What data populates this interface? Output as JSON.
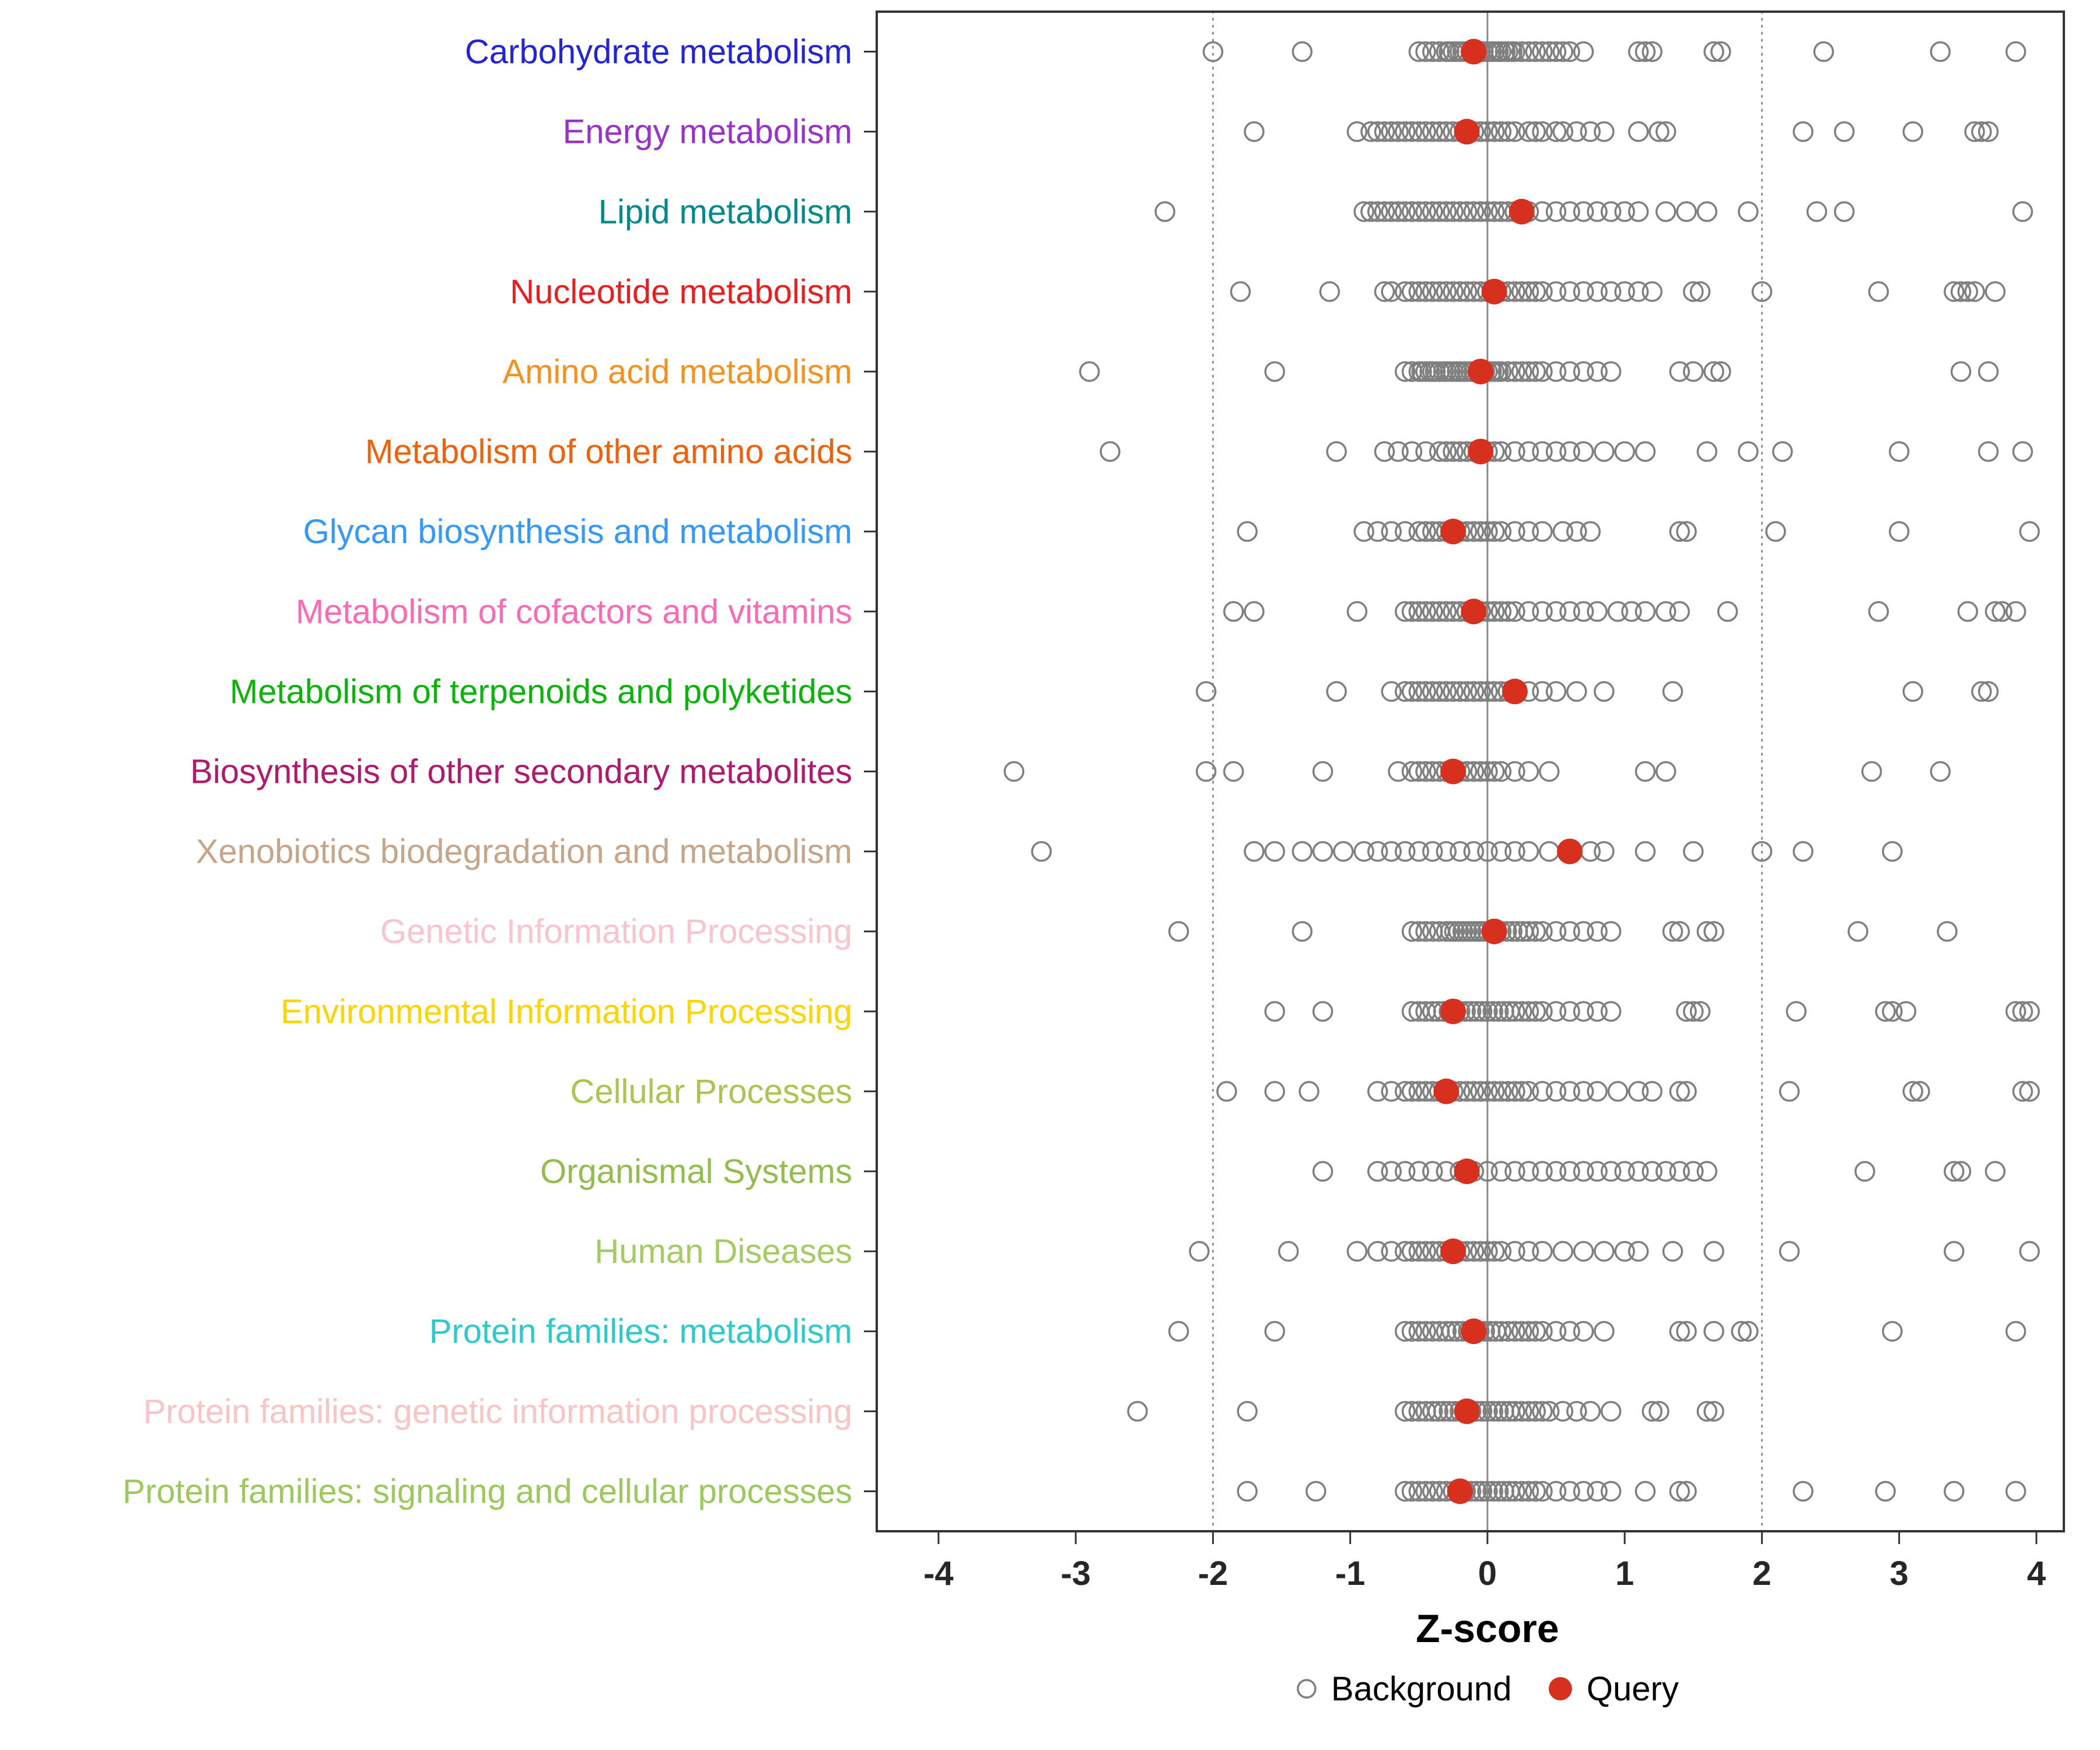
{
  "figure": {
    "background": "#FFFFFF"
  },
  "chart_data": {
    "type": "scatter",
    "variant": "horizontal-strip-dot-plot",
    "title": "",
    "xlabel": "Z-score",
    "ylabel": "",
    "xlim": [
      -4.45,
      4.2
    ],
    "xticks": [
      -4,
      -3,
      -2,
      -1,
      0,
      1,
      2,
      3,
      4
    ],
    "grid": false,
    "reference_lines": {
      "solid": [
        0
      ],
      "dotted": [
        -2,
        2
      ]
    },
    "background_point_color": "#7F7F7F",
    "query_point_color": "#D7301F",
    "panel_border_color": "#333333",
    "legend_position": "bottom",
    "legend": [
      {
        "label": "Background",
        "marker": "open-circle",
        "color": "#7F7F7F"
      },
      {
        "label": "Query",
        "marker": "filled-circle",
        "color": "#D7301F"
      }
    ],
    "categories": [
      {
        "label": "Carbohydrate metabolism",
        "color": "#2323DC",
        "query": -0.1,
        "background": [
          -2.0,
          -1.35,
          -0.5,
          -0.45,
          -0.4,
          -0.35,
          -0.3,
          -0.28,
          -0.25,
          -0.22,
          -0.2,
          -0.18,
          -0.15,
          -0.12,
          -0.1,
          -0.08,
          -0.05,
          -0.03,
          0.0,
          0.03,
          0.05,
          0.08,
          0.1,
          0.13,
          0.15,
          0.18,
          0.2,
          0.25,
          0.3,
          0.35,
          0.4,
          0.45,
          0.5,
          0.55,
          0.6,
          0.7,
          1.1,
          1.15,
          1.2,
          1.65,
          1.7,
          2.45,
          3.3,
          3.85
        ]
      },
      {
        "label": "Energy metabolism",
        "color": "#9932CC",
        "query": -0.15,
        "background": [
          -1.7,
          -0.95,
          -0.85,
          -0.8,
          -0.75,
          -0.7,
          -0.65,
          -0.6,
          -0.55,
          -0.5,
          -0.45,
          -0.4,
          -0.35,
          -0.3,
          -0.25,
          -0.2,
          -0.15,
          -0.1,
          -0.05,
          0.0,
          0.05,
          0.1,
          0.15,
          0.2,
          0.3,
          0.35,
          0.4,
          0.5,
          0.55,
          0.65,
          0.75,
          0.85,
          1.1,
          1.25,
          1.3,
          2.3,
          2.6,
          3.1,
          3.55,
          3.6,
          3.65
        ]
      },
      {
        "label": "Lipid metabolism",
        "color": "#008B8B",
        "query": 0.25,
        "background": [
          -2.35,
          -0.9,
          -0.85,
          -0.8,
          -0.75,
          -0.7,
          -0.65,
          -0.6,
          -0.55,
          -0.5,
          -0.45,
          -0.4,
          -0.35,
          -0.3,
          -0.25,
          -0.2,
          -0.15,
          -0.1,
          -0.05,
          0.0,
          0.05,
          0.1,
          0.15,
          0.2,
          0.3,
          0.4,
          0.5,
          0.6,
          0.7,
          0.8,
          0.9,
          1.0,
          1.1,
          1.3,
          1.45,
          1.6,
          1.9,
          2.4,
          2.6,
          3.9
        ]
      },
      {
        "label": "Nucleotide metabolism",
        "color": "#EE1C1C",
        "query": 0.05,
        "background": [
          -1.8,
          -1.15,
          -0.75,
          -0.7,
          -0.6,
          -0.55,
          -0.5,
          -0.45,
          -0.4,
          -0.35,
          -0.3,
          -0.25,
          -0.2,
          -0.15,
          -0.1,
          -0.05,
          0.0,
          0.05,
          0.1,
          0.15,
          0.2,
          0.25,
          0.3,
          0.35,
          0.4,
          0.5,
          0.6,
          0.7,
          0.8,
          0.9,
          1.0,
          1.1,
          1.2,
          1.5,
          1.55,
          2.0,
          2.85,
          3.4,
          3.45,
          3.5,
          3.55,
          3.7
        ]
      },
      {
        "label": "Amino acid metabolism",
        "color": "#F5921E",
        "query": -0.05,
        "background": [
          -2.9,
          -1.55,
          -0.6,
          -0.55,
          -0.5,
          -0.48,
          -0.45,
          -0.42,
          -0.4,
          -0.38,
          -0.35,
          -0.32,
          -0.3,
          -0.27,
          -0.25,
          -0.22,
          -0.2,
          -0.17,
          -0.15,
          -0.12,
          -0.1,
          -0.07,
          -0.05,
          -0.02,
          0.0,
          0.03,
          0.05,
          0.08,
          0.1,
          0.15,
          0.2,
          0.25,
          0.3,
          0.35,
          0.4,
          0.5,
          0.6,
          0.7,
          0.8,
          0.9,
          1.4,
          1.5,
          1.65,
          1.7,
          3.45,
          3.65
        ]
      },
      {
        "label": "Metabolism of other amino acids",
        "color": "#F2600A",
        "query": -0.05,
        "background": [
          -2.75,
          -1.1,
          -0.75,
          -0.65,
          -0.55,
          -0.45,
          -0.35,
          -0.3,
          -0.25,
          -0.2,
          -0.15,
          -0.1,
          -0.05,
          0.0,
          0.05,
          0.1,
          0.2,
          0.3,
          0.4,
          0.5,
          0.6,
          0.7,
          0.85,
          1.0,
          1.15,
          1.6,
          1.9,
          2.15,
          3.0,
          3.65,
          3.9
        ]
      },
      {
        "label": "Glycan biosynthesis and metabolism",
        "color": "#3399FF",
        "query": -0.25,
        "background": [
          -1.75,
          -0.9,
          -0.8,
          -0.7,
          -0.6,
          -0.5,
          -0.45,
          -0.4,
          -0.35,
          -0.3,
          -0.25,
          -0.2,
          -0.15,
          -0.1,
          -0.05,
          0.0,
          0.05,
          0.1,
          0.2,
          0.3,
          0.4,
          0.55,
          0.65,
          0.75,
          1.4,
          1.45,
          2.1,
          3.0,
          3.95
        ]
      },
      {
        "label": "Metabolism of cofactors and vitamins",
        "color": "#FF69B4",
        "query": -0.1,
        "background": [
          -1.85,
          -1.7,
          -0.95,
          -0.6,
          -0.55,
          -0.5,
          -0.45,
          -0.4,
          -0.35,
          -0.3,
          -0.25,
          -0.2,
          -0.15,
          -0.1,
          -0.05,
          0.0,
          0.05,
          0.1,
          0.15,
          0.2,
          0.3,
          0.4,
          0.5,
          0.6,
          0.7,
          0.8,
          0.95,
          1.05,
          1.15,
          1.3,
          1.4,
          1.75,
          2.85,
          3.5,
          3.7,
          3.75,
          3.85
        ]
      },
      {
        "label": "Metabolism of terpenoids and polyketides",
        "color": "#0AB50A",
        "query": 0.2,
        "background": [
          -2.05,
          -1.1,
          -0.7,
          -0.6,
          -0.55,
          -0.5,
          -0.45,
          -0.4,
          -0.35,
          -0.3,
          -0.25,
          -0.2,
          -0.15,
          -0.1,
          -0.05,
          0.0,
          0.05,
          0.1,
          0.15,
          0.2,
          0.3,
          0.4,
          0.5,
          0.65,
          0.85,
          1.35,
          3.1,
          3.6,
          3.65
        ]
      },
      {
        "label": "Biosynthesis of other secondary metabolites",
        "color": "#B2186B",
        "query": -0.25,
        "background": [
          -3.45,
          -2.05,
          -1.85,
          -1.2,
          -0.65,
          -0.55,
          -0.5,
          -0.45,
          -0.4,
          -0.35,
          -0.3,
          -0.25,
          -0.2,
          -0.15,
          -0.1,
          -0.05,
          0.0,
          0.05,
          0.1,
          0.2,
          0.3,
          0.45,
          1.15,
          1.3,
          2.8,
          3.3
        ]
      },
      {
        "label": "Xenobiotics biodegradation and metabolism",
        "color": "#C7A588",
        "query": 0.6,
        "background": [
          -3.25,
          -1.7,
          -1.55,
          -1.35,
          -1.2,
          -1.05,
          -0.9,
          -0.8,
          -0.7,
          -0.6,
          -0.5,
          -0.4,
          -0.3,
          -0.2,
          -0.1,
          0.0,
          0.1,
          0.2,
          0.3,
          0.45,
          0.6,
          0.75,
          0.85,
          1.15,
          1.5,
          2.0,
          2.3,
          2.95
        ]
      },
      {
        "label": "Genetic Information Processing",
        "color": "#F9C4CB",
        "query": 0.05,
        "background": [
          -2.25,
          -1.35,
          -0.55,
          -0.5,
          -0.45,
          -0.4,
          -0.35,
          -0.3,
          -0.27,
          -0.24,
          -0.21,
          -0.18,
          -0.15,
          -0.12,
          -0.09,
          -0.06,
          -0.03,
          0.0,
          0.03,
          0.06,
          0.1,
          0.14,
          0.18,
          0.22,
          0.26,
          0.3,
          0.35,
          0.4,
          0.5,
          0.6,
          0.7,
          0.8,
          0.9,
          1.35,
          1.4,
          1.6,
          1.65,
          2.7,
          3.35
        ]
      },
      {
        "label": "Environmental Information Processing",
        "color": "#FFD400",
        "query": -0.25,
        "background": [
          -1.55,
          -1.2,
          -0.55,
          -0.5,
          -0.45,
          -0.4,
          -0.36,
          -0.32,
          -0.28,
          -0.24,
          -0.2,
          -0.16,
          -0.12,
          -0.08,
          -0.04,
          0.0,
          0.04,
          0.08,
          0.12,
          0.16,
          0.2,
          0.25,
          0.3,
          0.35,
          0.4,
          0.5,
          0.6,
          0.7,
          0.8,
          0.9,
          1.45,
          1.5,
          1.55,
          2.25,
          2.9,
          2.95,
          3.05,
          3.85,
          3.9,
          3.95
        ]
      },
      {
        "label": "Cellular Processes",
        "color": "#A9C64E",
        "query": -0.3,
        "background": [
          -1.9,
          -1.55,
          -1.3,
          -0.8,
          -0.7,
          -0.6,
          -0.55,
          -0.5,
          -0.45,
          -0.4,
          -0.35,
          -0.3,
          -0.25,
          -0.2,
          -0.15,
          -0.1,
          -0.05,
          0.0,
          0.05,
          0.1,
          0.15,
          0.2,
          0.25,
          0.3,
          0.4,
          0.5,
          0.6,
          0.7,
          0.8,
          0.95,
          1.1,
          1.2,
          1.4,
          1.45,
          2.2,
          3.1,
          3.15,
          3.9,
          3.95
        ]
      },
      {
        "label": "Organismal Systems",
        "color": "#93BE4B",
        "query": -0.15,
        "background": [
          -1.2,
          -0.8,
          -0.7,
          -0.6,
          -0.5,
          -0.4,
          -0.3,
          -0.2,
          -0.1,
          0.0,
          0.1,
          0.2,
          0.3,
          0.4,
          0.5,
          0.6,
          0.7,
          0.8,
          0.9,
          1.0,
          1.1,
          1.2,
          1.3,
          1.4,
          1.5,
          1.6,
          2.75,
          3.4,
          3.45,
          3.7
        ]
      },
      {
        "label": "Human Diseases",
        "color": "#A5CB63",
        "query": -0.25,
        "background": [
          -2.1,
          -1.45,
          -0.95,
          -0.8,
          -0.7,
          -0.6,
          -0.55,
          -0.5,
          -0.45,
          -0.4,
          -0.35,
          -0.3,
          -0.25,
          -0.2,
          -0.15,
          -0.1,
          -0.05,
          0.0,
          0.05,
          0.1,
          0.2,
          0.3,
          0.4,
          0.55,
          0.7,
          0.85,
          1.0,
          1.1,
          1.35,
          1.65,
          2.2,
          3.4,
          3.95
        ]
      },
      {
        "label": "Protein families: metabolism",
        "color": "#2BCBCB",
        "query": -0.1,
        "background": [
          -2.25,
          -1.55,
          -0.6,
          -0.55,
          -0.5,
          -0.45,
          -0.4,
          -0.35,
          -0.3,
          -0.26,
          -0.22,
          -0.18,
          -0.14,
          -0.1,
          -0.06,
          -0.02,
          0.02,
          0.06,
          0.1,
          0.15,
          0.2,
          0.25,
          0.3,
          0.35,
          0.4,
          0.5,
          0.6,
          0.7,
          0.85,
          1.4,
          1.45,
          1.65,
          1.85,
          1.9,
          2.95,
          3.85
        ]
      },
      {
        "label": "Protein families: genetic information processing",
        "color": "#F9C4C4",
        "query": -0.15,
        "background": [
          -2.55,
          -1.75,
          -0.6,
          -0.55,
          -0.5,
          -0.45,
          -0.4,
          -0.36,
          -0.32,
          -0.28,
          -0.24,
          -0.2,
          -0.16,
          -0.12,
          -0.08,
          -0.04,
          0.0,
          0.04,
          0.08,
          0.12,
          0.16,
          0.2,
          0.25,
          0.3,
          0.35,
          0.4,
          0.45,
          0.55,
          0.65,
          0.75,
          0.9,
          1.2,
          1.25,
          1.6,
          1.65
        ]
      },
      {
        "label": "Protein families: signaling and cellular processes",
        "color": "#9CC95C",
        "query": -0.2,
        "background": [
          -1.75,
          -1.25,
          -0.6,
          -0.55,
          -0.5,
          -0.45,
          -0.4,
          -0.35,
          -0.3,
          -0.25,
          -0.2,
          -0.16,
          -0.12,
          -0.08,
          -0.04,
          0.0,
          0.04,
          0.08,
          0.12,
          0.16,
          0.2,
          0.25,
          0.3,
          0.35,
          0.4,
          0.5,
          0.6,
          0.7,
          0.8,
          0.9,
          1.15,
          1.4,
          1.45,
          2.3,
          2.9,
          3.4,
          3.85
        ]
      }
    ]
  }
}
